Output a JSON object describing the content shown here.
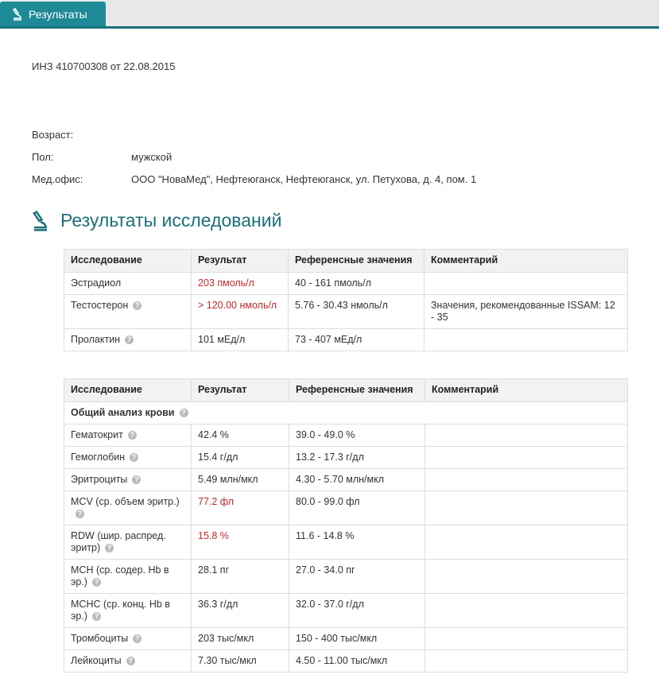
{
  "tab": {
    "label": "Результаты",
    "icon": "microscope-icon"
  },
  "header": {
    "inz": "ИНЗ 410700308 от 22.08.2015"
  },
  "patient": [
    {
      "label": "Возраст:",
      "value": ""
    },
    {
      "label": "Пол:",
      "value": "мужской"
    },
    {
      "label": "Мед.офис:",
      "value": "ООО \"НоваМед\", Нефтеюганск, Нефтеюганск, ул. Петухова, д. 4, пом. 1"
    }
  ],
  "section_title": "Результаты исследований",
  "columns": [
    "Исследование",
    "Результат",
    "Референсные значения",
    "Комментарий"
  ],
  "table1": [
    {
      "name": "Эстрадиол",
      "help": false,
      "result": "203 пмоль/л",
      "abnormal": true,
      "ref": "40 - 161 пмоль/л",
      "comment": ""
    },
    {
      "name": "Тестостерон",
      "help": true,
      "result": "> 120.00 нмоль/л",
      "abnormal": true,
      "ref": "5.76 - 30.43 нмоль/л",
      "comment": "Значения, рекомендованные ISSAM: 12 - 35"
    },
    {
      "name": "Пролактин",
      "help": true,
      "result": "101 мЕд/л",
      "abnormal": false,
      "ref": "73 - 407 мЕд/л",
      "comment": ""
    }
  ],
  "table2_section": "Общий анализ крови",
  "table2": [
    {
      "name": "Гематокрит",
      "result": "42.4 %",
      "abnormal": false,
      "ref": "39.0 - 49.0 %",
      "comment": ""
    },
    {
      "name": "Гемоглобин",
      "result": "15.4 г/дл",
      "abnormal": false,
      "ref": "13.2 - 17.3 г/дл",
      "comment": ""
    },
    {
      "name": "Эритроциты",
      "result": "5.49 млн/мкл",
      "abnormal": false,
      "ref": "4.30 - 5.70 млн/мкл",
      "comment": ""
    },
    {
      "name": "MCV (ср. объем эритр.)",
      "result": "77.2 фл",
      "abnormal": true,
      "ref": "80.0 - 99.0 фл",
      "comment": ""
    },
    {
      "name": "RDW (шир. распред. эритр)",
      "result": "15.8 %",
      "abnormal": true,
      "ref": "11.6 - 14.8 %",
      "comment": ""
    },
    {
      "name": "MCH (ср. содер. Hb в эр.)",
      "result": "28.1 пг",
      "abnormal": false,
      "ref": "27.0 - 34.0 пг",
      "comment": ""
    },
    {
      "name": "MCHC (ср. конц. Hb в эр.)",
      "result": "36.3 г/дл",
      "abnormal": false,
      "ref": "32.0 - 37.0 г/дл",
      "comment": ""
    },
    {
      "name": "Тромбоциты",
      "result": "203 тыс/мкл",
      "abnormal": false,
      "ref": "150 - 400 тыс/мкл",
      "comment": ""
    },
    {
      "name": "Лейкоциты",
      "result": "7.30 тыс/мкл",
      "abnormal": false,
      "ref": "4.50 - 11.00 тыс/мкл",
      "comment": ""
    }
  ],
  "colors": {
    "accent": "#1e8a96",
    "abnormal": "#c0282d"
  }
}
